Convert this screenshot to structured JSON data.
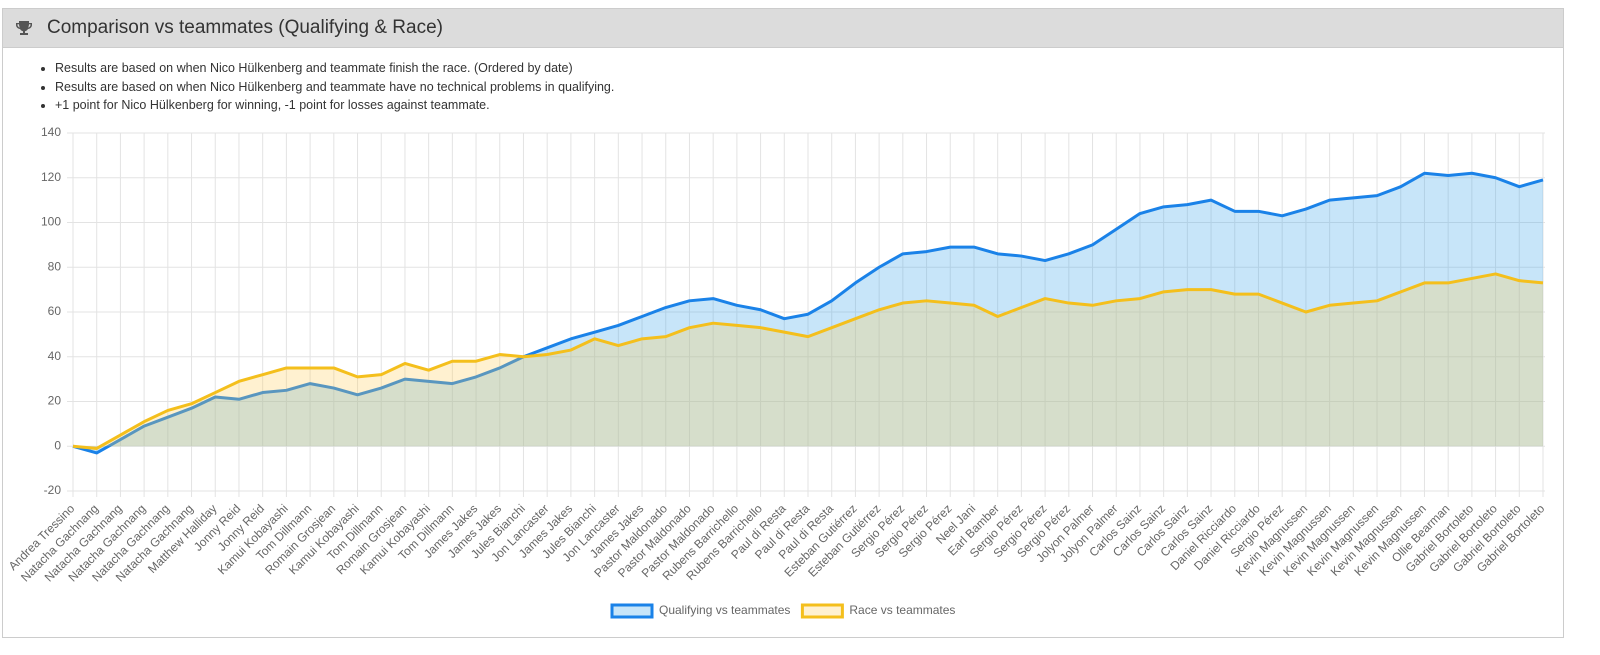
{
  "header": {
    "title": "Comparison vs teammates (Qualifying & Race)"
  },
  "notes": [
    "Results are based on when Nico Hülkenberg and teammate finish the race. (Ordered by date)",
    "Results are based on when Nico Hülkenberg and teammate have no technical problems in qualifying.",
    "+1 point for Nico Hülkenberg for winning, -1 point for losses against teammate."
  ],
  "chart_data": {
    "type": "line",
    "fill": true,
    "categories": [
      "Andrea Tressino",
      "Natacha Gachnang",
      "Natacha Gachnang",
      "Natacha Gachnang",
      "Natacha Gachnang",
      "Natacha Gachnang",
      "Matthew Halliday",
      "Jonny Reid",
      "Jonny Reid",
      "Kamui Kobayashi",
      "Tom Dillmann",
      "Romain Grosjean",
      "Kamui Kobayashi",
      "Tom Dillmann",
      "Romain Grosjean",
      "Kamui Kobayashi",
      "Tom Dillmann",
      "James Jakes",
      "James Jakes",
      "Jules Bianchi",
      "Jon Lancaster",
      "James Jakes",
      "Jules Bianchi",
      "Jon Lancaster",
      "James Jakes",
      "Pastor Maldonado",
      "Pastor Maldonado",
      "Pastor Maldonado",
      "Rubens Barrichello",
      "Rubens Barrichello",
      "Paul di Resta",
      "Paul di Resta",
      "Paul di Resta",
      "Esteban Gutiérrez",
      "Esteban Gutiérrez",
      "Sergio Pérez",
      "Sergio Pérez",
      "Sergio Pérez",
      "Neel Jani",
      "Earl Bamber",
      "Sergio Pérez",
      "Sergio Pérez",
      "Sergio Pérez",
      "Jolyon Palmer",
      "Jolyon Palmer",
      "Carlos Sainz",
      "Carlos Sainz",
      "Carlos Sainz",
      "Carlos Sainz",
      "Daniel Ricciardo",
      "Daniel Ricciardo",
      "Sergio Pérez",
      "Kevin Magnussen",
      "Kevin Magnussen",
      "Kevin Magnussen",
      "Kevin Magnussen",
      "Kevin Magnussen",
      "Kevin Magnussen",
      "Ollie Bearman",
      "Gabriel Bortoleto",
      "Gabriel Bortoleto",
      "Gabriel Bortoleto",
      "Gabriel Bortoleto"
    ],
    "series": [
      {
        "name": "Qualifying vs teammates",
        "color": "#1a82e8",
        "fill": "rgba(54,162,235,0.28)",
        "values": [
          0,
          -3,
          3,
          9,
          13,
          17,
          22,
          21,
          24,
          25,
          28,
          26,
          23,
          26,
          30,
          29,
          28,
          31,
          35,
          40,
          44,
          48,
          51,
          54,
          58,
          62,
          65,
          66,
          63,
          61,
          57,
          59,
          65,
          73,
          80,
          86,
          87,
          89,
          89,
          86,
          85,
          83,
          86,
          90,
          97,
          104,
          107,
          108,
          110,
          105,
          105,
          103,
          106,
          110,
          111,
          112,
          116,
          122,
          121,
          122,
          120,
          116,
          119
        ]
      },
      {
        "name": "Race vs teammates",
        "color": "#f4bf1c",
        "fill": "rgba(255,206,86,0.28)",
        "values": [
          0,
          -1,
          5,
          11,
          16,
          19,
          24,
          29,
          32,
          35,
          35,
          35,
          31,
          32,
          37,
          34,
          38,
          38,
          41,
          40,
          41,
          43,
          48,
          45,
          48,
          49,
          53,
          55,
          54,
          53,
          51,
          49,
          53,
          57,
          61,
          64,
          65,
          64,
          63,
          58,
          62,
          66,
          64,
          63,
          65,
          66,
          69,
          70,
          70,
          68,
          68,
          64,
          60,
          63,
          64,
          65,
          69,
          73,
          73,
          75,
          77,
          74,
          73
        ]
      }
    ],
    "ylim": [
      -20,
      140
    ],
    "yticks": [
      -20,
      0,
      20,
      40,
      60,
      80,
      100,
      120,
      140
    ],
    "grid": true,
    "legend": "bottom"
  }
}
